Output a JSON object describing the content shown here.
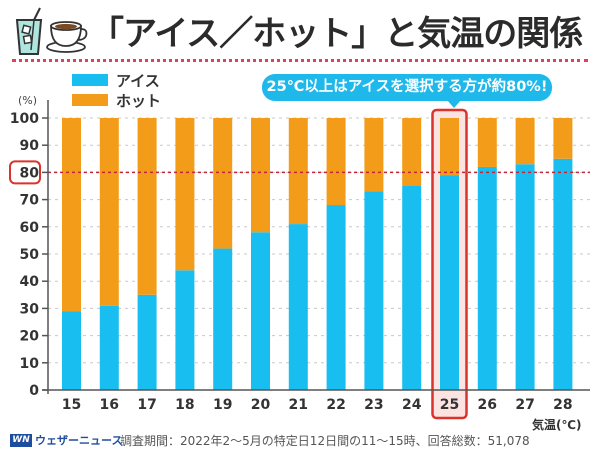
{
  "header": {
    "title": "「アイス／ホット」と気温の関係",
    "icons": [
      "iced-drink-icon",
      "coffee-cup-icon"
    ]
  },
  "callout": {
    "text": "25℃以上はアイスを選択する方が約80%!"
  },
  "footer": {
    "logo_mark": "WN",
    "logo_text": "ウェザーニュース",
    "note": "調査期間：2022年2～5月の特定日12日間の11～15時、回答総数：51,078"
  },
  "colors": {
    "ice": "#18BEF0",
    "hot": "#F39C1A",
    "highlight": "#D9342B",
    "reference_line": "#C0283A"
  },
  "chart_data": {
    "type": "bar",
    "stacked": true,
    "title": "「アイス／ホット」と気温の関係",
    "xlabel": "気温(℃)",
    "ylabel": "(%)",
    "ylim": [
      0,
      100
    ],
    "yticks": [
      0,
      10,
      20,
      30,
      40,
      50,
      60,
      70,
      80,
      90,
      100
    ],
    "grid": true,
    "legend": "top-left",
    "categories": [
      "15",
      "16",
      "17",
      "18",
      "19",
      "20",
      "21",
      "22",
      "23",
      "24",
      "25",
      "26",
      "27",
      "28"
    ],
    "series": [
      {
        "name": "アイス",
        "values": [
          29,
          31,
          35,
          44,
          52,
          58,
          61,
          68,
          73,
          75,
          79,
          82,
          83,
          85
        ]
      },
      {
        "name": "ホット",
        "values": [
          71,
          69,
          65,
          56,
          48,
          42,
          39,
          32,
          27,
          25,
          21,
          18,
          17,
          15
        ]
      }
    ],
    "reference_line": {
      "axis": "y",
      "value": 80
    },
    "highlighted_category": "25",
    "highlighted_ytick": 80,
    "annotation": "25℃以上はアイスを選択する方が約80%!"
  }
}
